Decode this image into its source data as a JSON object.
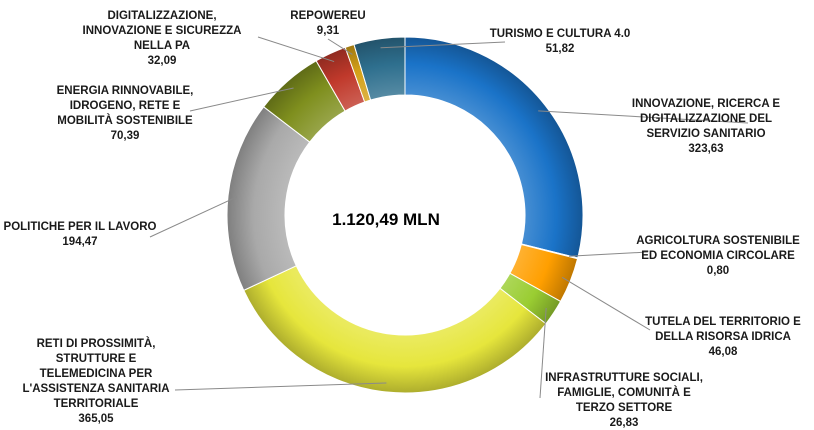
{
  "chart_data": {
    "type": "pie",
    "variant": "donut",
    "center_label": "1.120,49 MLN",
    "categories": [
      "INNOVAZIONE, RICERCA E DIGITALIZZAZIONE DEL SERVIZIO SANITARIO",
      "AGRICOLTURA SOSTENIBILE ED ECONOMIA CIRCOLARE",
      "TUTELA DEL TERRITORIO E DELLA RISORSA IDRICA",
      "INFRASTRUTTURE SOCIALI, FAMIGLIE, COMUNITÀ E TERZO SETTORE",
      "RETI DI PROSSIMITÀ, STRUTTURE E TELEMEDICINA PER L'ASSISTENZA SANITARIA TERRITORIALE",
      "POLITICHE PER IL LAVORO",
      "ENERGIA RINNOVABILE, IDROGENO, RETE E MOBILITÀ SOSTENIBILE",
      "DIGITALIZZAZIONE, INNOVAZIONE E SICUREZZA NELLA PA",
      "REPOWEREU",
      "TURISMO E CULTURA 4.0"
    ],
    "values": [
      323.63,
      0.8,
      46.08,
      26.83,
      365.05,
      194.47,
      70.39,
      32.09,
      9.31,
      51.82
    ],
    "value_labels": [
      "323,63",
      "0,80",
      "46,08",
      "26,83",
      "365,05",
      "194,47",
      "70,39",
      "32,09",
      "9,31",
      "51,82"
    ],
    "label_lines": [
      [
        "INNOVAZIONE, RICERCA E",
        "DIGITALIZZAZIONE DEL",
        "SERVIZIO SANITARIO"
      ],
      [
        "AGRICOLTURA SOSTENIBILE",
        "ED ECONOMIA CIRCOLARE"
      ],
      [
        "TUTELA DEL TERRITORIO E",
        "DELLA RISORSA IDRICA"
      ],
      [
        "INFRASTRUTTURE SOCIALI,",
        "FAMIGLIE, COMUNITÀ E",
        "TERZO SETTORE"
      ],
      [
        "RETI DI PROSSIMITÀ,",
        "STRUTTURE E",
        "TELEMEDICINA PER",
        "L'ASSISTENZA SANITARIA",
        "TERRITORIALE"
      ],
      [
        "POLITICHE PER IL LAVORO"
      ],
      [
        "ENERGIA RINNOVABILE,",
        "IDROGENO, RETE E",
        "MOBILITÀ SOSTENIBILE"
      ],
      [
        "DIGITALIZZAZIONE,",
        "INNOVAZIONE E SICUREZZA",
        "NELLA PA"
      ],
      [
        "REPOWEREU"
      ],
      [
        "TURISMO E CULTURA 4.0"
      ]
    ],
    "colors": [
      "#1a73c8",
      "#6f8e2e",
      "#ff9f00",
      "#9acd32",
      "#e6e63c",
      "#a9a9a9",
      "#7f8f1e",
      "#c0392b",
      "#d4a017",
      "#2e6f8e"
    ],
    "legend": "none",
    "grid": false
  }
}
